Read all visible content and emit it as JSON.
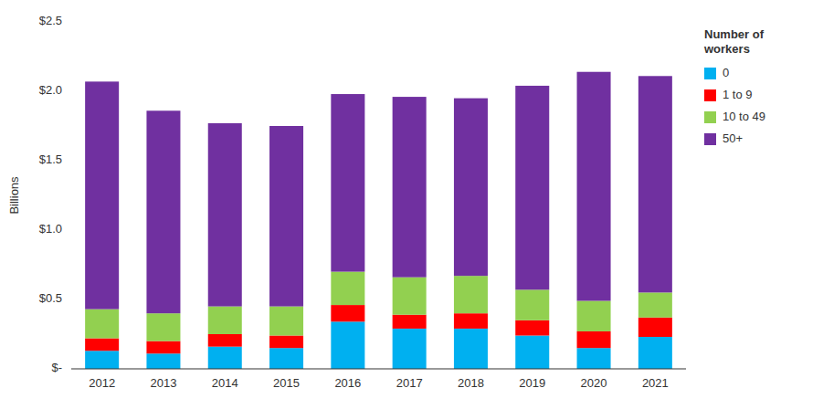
{
  "chart_data": {
    "type": "bar",
    "stacked": true,
    "categories": [
      "2012",
      "2013",
      "2014",
      "2015",
      "2016",
      "2017",
      "2018",
      "2019",
      "2020",
      "2021"
    ],
    "series": [
      {
        "name": "0",
        "color": "#00B0F0",
        "values": [
          0.13,
          0.11,
          0.16,
          0.15,
          0.34,
          0.29,
          0.29,
          0.24,
          0.15,
          0.23
        ]
      },
      {
        "name": "1 to 9",
        "color": "#FF0000",
        "values": [
          0.09,
          0.09,
          0.09,
          0.09,
          0.12,
          0.1,
          0.11,
          0.11,
          0.12,
          0.14
        ]
      },
      {
        "name": "10 to 49",
        "color": "#92D050",
        "values": [
          0.21,
          0.2,
          0.2,
          0.21,
          0.24,
          0.27,
          0.27,
          0.22,
          0.22,
          0.18
        ]
      },
      {
        "name": "50+",
        "color": "#7030A0",
        "values": [
          1.64,
          1.46,
          1.32,
          1.3,
          1.28,
          1.3,
          1.28,
          1.47,
          1.65,
          1.56
        ]
      }
    ],
    "ylabel": "Billions",
    "legend_title": "Number of\nworkers",
    "ylim": [
      0,
      2.5
    ],
    "yticks": [
      {
        "value": 0,
        "label": "$-"
      },
      {
        "value": 0.5,
        "label": "$0.5"
      },
      {
        "value": 1.0,
        "label": "$1.0"
      },
      {
        "value": 1.5,
        "label": "$1.5"
      },
      {
        "value": 2.0,
        "label": "$2.0"
      },
      {
        "value": 2.5,
        "label": "$2.5"
      }
    ],
    "grid": false,
    "legend": "right"
  }
}
